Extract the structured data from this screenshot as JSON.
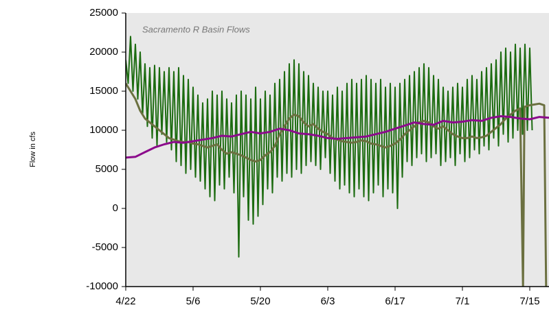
{
  "chart_data": {
    "type": "line",
    "title": "Sacramento R Basin Flows",
    "ylabel": "Flow in cfs",
    "xlim": [
      0,
      88
    ],
    "xticks": [
      {
        "value": 0,
        "label": "4/22"
      },
      {
        "value": 14,
        "label": "5/6"
      },
      {
        "value": 28,
        "label": "5/20"
      },
      {
        "value": 42,
        "label": "6/3"
      },
      {
        "value": 56,
        "label": "6/17"
      },
      {
        "value": 70,
        "label": "7/1"
      },
      {
        "value": 84,
        "label": "7/15"
      }
    ],
    "ylim": [
      -10000,
      25000
    ],
    "yticks": [
      -10000,
      -5000,
      0,
      5000,
      10000,
      15000,
      20000,
      25000
    ],
    "grid": false,
    "series": [
      {
        "color": "#1c6b10",
        "x": [
          0,
          0.5,
          1,
          1.5,
          2,
          2.5,
          3,
          3.5,
          4,
          4.5,
          5,
          5.5,
          6,
          6.5,
          7,
          7.5,
          8,
          8.5,
          9,
          9.5,
          10,
          10.5,
          11,
          11.5,
          12,
          12.5,
          13,
          13.5,
          14,
          14.5,
          15,
          15.5,
          16,
          16.5,
          17,
          17.5,
          18,
          18.5,
          19,
          19.5,
          20,
          20.5,
          21,
          21.5,
          22,
          22.5,
          23,
          23.5,
          24,
          24.5,
          25,
          25.5,
          26,
          26.5,
          27,
          27.5,
          28,
          28.5,
          29,
          29.5,
          30,
          30.5,
          31,
          31.5,
          32,
          32.5,
          33,
          33.5,
          34,
          34.5,
          35,
          35.5,
          36,
          36.5,
          37,
          37.5,
          38,
          38.5,
          39,
          39.5,
          40,
          40.5,
          41,
          41.5,
          42,
          42.5,
          43,
          43.5,
          44,
          44.5,
          45,
          45.5,
          46,
          46.5,
          47,
          47.5,
          48,
          48.5,
          49,
          49.5,
          50,
          50.5,
          51,
          51.5,
          52,
          52.5,
          53,
          53.5,
          54,
          54.5,
          55,
          55.5,
          56,
          56.5,
          57,
          57.5,
          58,
          58.5,
          59,
          59.5,
          60,
          60.5,
          61,
          61.5,
          62,
          62.5,
          63,
          63.5,
          64,
          64.5,
          65,
          65.5,
          66,
          66.5,
          67,
          67.5,
          68,
          68.5,
          69,
          69.5,
          70,
          70.5,
          71,
          71.5,
          72,
          72.5,
          73,
          73.5,
          74,
          74.5,
          75,
          75.5,
          76,
          76.5,
          77,
          77.5,
          78,
          78.5,
          79,
          79.5,
          80,
          80.5,
          81,
          81.5,
          82,
          82.5,
          83,
          83.5,
          84,
          84.5
        ],
        "values": [
          19000,
          16000,
          22000,
          15000,
          21000,
          14000,
          20000,
          12000,
          18500,
          10500,
          18000,
          9000,
          18300,
          8000,
          18000,
          9500,
          17500,
          8500,
          18000,
          7500,
          17500,
          6000,
          18000,
          5500,
          17000,
          4500,
          16500,
          5000,
          15500,
          4000,
          14500,
          3500,
          13500,
          2500,
          14000,
          1500,
          15000,
          1000,
          14500,
          3000,
          15000,
          2500,
          14000,
          4000,
          13500,
          2000,
          14500,
          -6200,
          15000,
          1500,
          14500,
          -1500,
          14000,
          -2000,
          15500,
          -1000,
          14000,
          500,
          15000,
          2500,
          14500,
          2000,
          16000,
          4000,
          16500,
          3500,
          17500,
          4500,
          18500,
          4000,
          19000,
          5000,
          18500,
          4500,
          17500,
          5500,
          17000,
          6000,
          16000,
          5500,
          15500,
          5000,
          15000,
          6500,
          15000,
          4500,
          14500,
          3500,
          15500,
          2500,
          15000,
          3000,
          16000,
          2000,
          16500,
          1500,
          16000,
          2500,
          16500,
          1500,
          17000,
          1000,
          16500,
          2000,
          16000,
          3000,
          16500,
          1500,
          15500,
          2500,
          16000,
          2000,
          15500,
          0,
          16000,
          4000,
          16500,
          6000,
          17000,
          5500,
          17500,
          6500,
          18000,
          7000,
          18500,
          6000,
          18000,
          6500,
          17000,
          7000,
          16500,
          5500,
          15500,
          6000,
          15000,
          6500,
          15500,
          5500,
          16000,
          7000,
          15500,
          6000,
          16500,
          6500,
          17000,
          7500,
          16500,
          7000,
          17500,
          8000,
          18000,
          7500,
          18500,
          9000,
          19000,
          8000,
          20000,
          9500,
          20500,
          8500,
          20000,
          9000,
          21000,
          10000,
          20500,
          9500,
          21000,
          10000,
          20500,
          10000
        ]
      },
      {
        "color": "#6b7040",
        "x": [
          0,
          1,
          2,
          3,
          4,
          5,
          6,
          7,
          8,
          9,
          10,
          11,
          12,
          13,
          14,
          15,
          16,
          17,
          18,
          19,
          20,
          21,
          22,
          23,
          24,
          25,
          26,
          27,
          28,
          29,
          30,
          31,
          32,
          33,
          34,
          35,
          36,
          37,
          38,
          39,
          40,
          41,
          42,
          43,
          44,
          45,
          46,
          47,
          48,
          49,
          50,
          51,
          52,
          53,
          54,
          55,
          56,
          57,
          58,
          59,
          60,
          61,
          62,
          63,
          64,
          65,
          66,
          67,
          68,
          69,
          70,
          71,
          72,
          73,
          74,
          75,
          76,
          77,
          78,
          79,
          80,
          81,
          82,
          82.6,
          82.9,
          84,
          85,
          86,
          87,
          87.4
        ],
        "values": [
          16000,
          15000,
          14000,
          12500,
          11500,
          11000,
          10500,
          10000,
          9500,
          9000,
          8800,
          8600,
          8500,
          8500,
          8300,
          8200,
          8000,
          7800,
          8000,
          8200,
          7500,
          7000,
          7200,
          7000,
          6800,
          6500,
          6200,
          6000,
          6200,
          6800,
          7200,
          8000,
          9500,
          10500,
          11500,
          12000,
          11800,
          11000,
          10500,
          10800,
          10200,
          9800,
          9500,
          9000,
          8800,
          8600,
          8500,
          8400,
          8500,
          8700,
          8600,
          8300,
          8200,
          8000,
          7800,
          8000,
          8300,
          8800,
          9500,
          10000,
          10500,
          11000,
          11200,
          11000,
          10500,
          10200,
          10500,
          10000,
          9500,
          9200,
          9000,
          9000,
          9200,
          9000,
          9100,
          9300,
          9800,
          10300,
          10800,
          11500,
          12000,
          12500,
          12800,
          -10000,
          13000,
          13200,
          13300,
          13400,
          13200,
          -10000
        ]
      },
      {
        "color": "#8b0a8b",
        "x": [
          0,
          2,
          4,
          6,
          8,
          10,
          12,
          14,
          16,
          18,
          20,
          22,
          24,
          26,
          28,
          30,
          32,
          34,
          36,
          38,
          40,
          42,
          44,
          46,
          48,
          50,
          52,
          54,
          56,
          58,
          60,
          62,
          64,
          66,
          68,
          70,
          72,
          74,
          76,
          78,
          80,
          82,
          84,
          86,
          88
        ],
        "values": [
          6500,
          6600,
          7200,
          7800,
          8200,
          8500,
          8400,
          8600,
          8800,
          9000,
          9300,
          9200,
          9500,
          9800,
          9600,
          9800,
          10200,
          10000,
          9600,
          9500,
          9300,
          9000,
          8900,
          9000,
          9100,
          9200,
          9500,
          9800,
          10200,
          10600,
          11000,
          10800,
          10700,
          11200,
          11000,
          11100,
          11300,
          11200,
          11600,
          11800,
          11700,
          11500,
          11400,
          11700,
          11600
        ]
      }
    ]
  }
}
